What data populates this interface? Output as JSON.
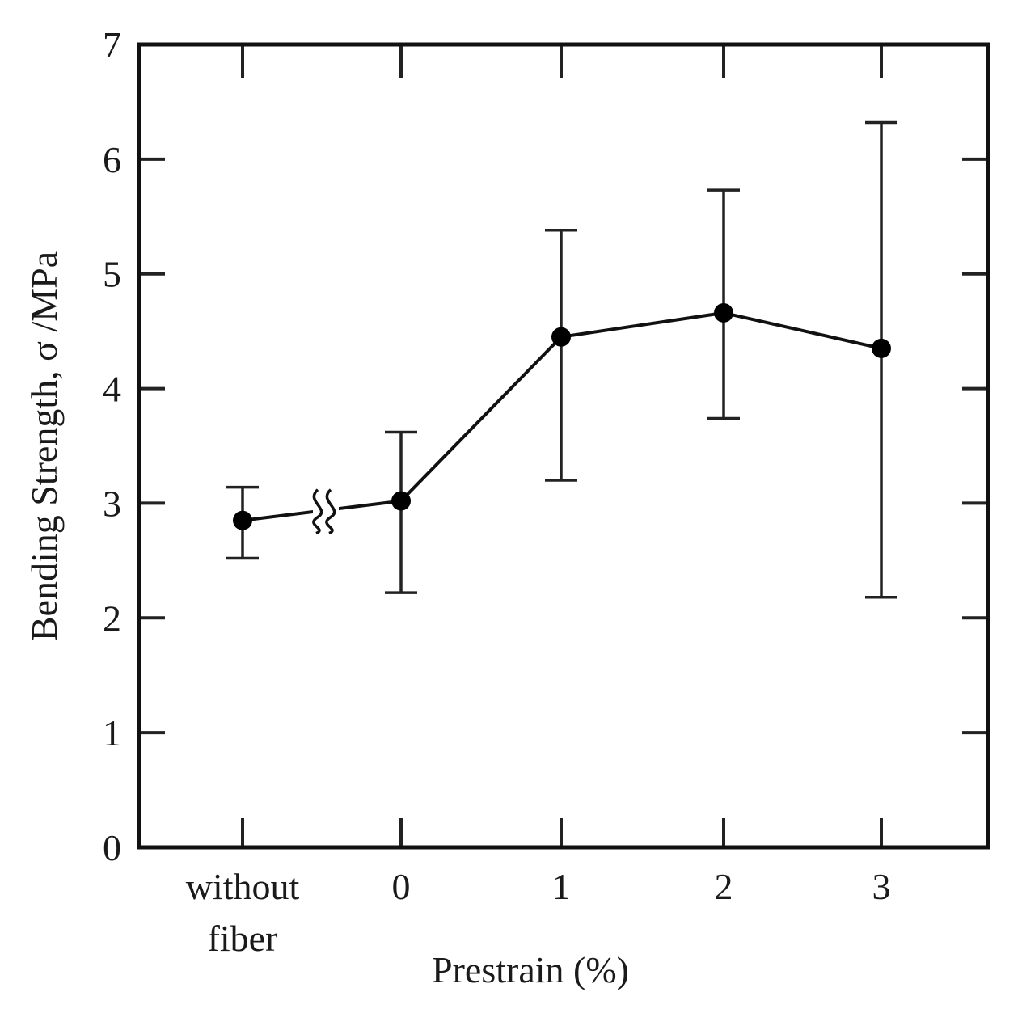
{
  "chart_data": {
    "type": "line",
    "title": "",
    "xlabel": "Prestrain (%)",
    "ylabel": "Bending Strength, σ /MPa",
    "ylim": [
      0,
      7
    ],
    "yticks": [
      "0",
      "1",
      "2",
      "3",
      "4",
      "5",
      "6",
      "7"
    ],
    "categories": [
      {
        "line1": "without",
        "line2": "fiber"
      },
      {
        "line1": "0",
        "line2": ""
      },
      {
        "line1": "1",
        "line2": ""
      },
      {
        "line1": "2",
        "line2": ""
      },
      {
        "line1": "3",
        "line2": ""
      }
    ],
    "series": [
      {
        "name": "Bending Strength",
        "values": [
          2.85,
          3.02,
          4.45,
          4.66,
          4.35
        ],
        "err_low": [
          2.52,
          2.22,
          3.2,
          3.74,
          2.18
        ],
        "err_high": [
          3.14,
          3.62,
          5.38,
          5.73,
          6.32
        ]
      }
    ],
    "axis_break_between": [
      0,
      1
    ],
    "grid": false
  }
}
